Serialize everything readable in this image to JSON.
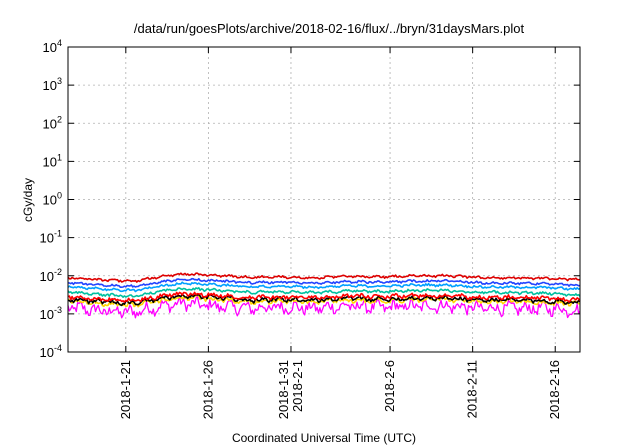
{
  "chart_data": {
    "type": "line",
    "title": "/data/run/goesPlots/archive/2018-02-16/flux/../bryn/31daysMars.plot",
    "xlabel": "Coordinated Universal Time (UTC)",
    "ylabel": "cGy/day",
    "y_scale": "log",
    "ylim": [
      0.0001,
      10000
    ],
    "xlim": [
      "2018-01-17T12:00",
      "2018-02-17T12:00"
    ],
    "grid": true,
    "legend": "none",
    "y_ticks": [
      {
        "value": 0.0001,
        "base": "10",
        "exp": "-4"
      },
      {
        "value": 0.001,
        "base": "10",
        "exp": "-3"
      },
      {
        "value": 0.01,
        "base": "10",
        "exp": "-2"
      },
      {
        "value": 0.1,
        "base": "10",
        "exp": "-1"
      },
      {
        "value": 1,
        "base": "10",
        "exp": "0"
      },
      {
        "value": 10,
        "base": "10",
        "exp": "1"
      },
      {
        "value": 100,
        "base": "10",
        "exp": "2"
      },
      {
        "value": 1000,
        "base": "10",
        "exp": "3"
      },
      {
        "value": 10000,
        "base": "10",
        "exp": "4"
      }
    ],
    "x_ticks": [
      {
        "date": "2018-01-21",
        "lines": [
          "2018-1-21"
        ]
      },
      {
        "date": "2018-01-26",
        "lines": [
          "2018-1-26"
        ]
      },
      {
        "date": "2018-01-31",
        "lines": [
          "2018-1-31",
          "2018-2-1"
        ]
      },
      {
        "date": "2018-02-06",
        "lines": [
          "2018-2-6"
        ]
      },
      {
        "date": "2018-02-11",
        "lines": [
          "2018-2-11"
        ]
      },
      {
        "date": "2018-02-16",
        "lines": [
          "2018-2-16"
        ]
      }
    ],
    "series": [
      {
        "color": "#ff00ff",
        "noise": 0.55,
        "x": [
          "2018-01-17T12:00",
          "2018-01-19T12:00",
          "2018-01-21T12:00",
          "2018-01-23T12:00",
          "2018-01-24T12:00",
          "2018-01-26T12:00",
          "2018-01-28T12:00",
          "2018-01-30T12:00",
          "2018-02-01T12:00",
          "2018-02-03T12:00",
          "2018-02-05T12:00",
          "2018-02-07T12:00",
          "2018-02-09T12:00",
          "2018-02-11T12:00",
          "2018-02-13T12:00",
          "2018-02-15T12:00",
          "2018-02-17T12:00"
        ],
        "values": [
          0.0015,
          0.0012,
          0.0011,
          0.0017,
          0.0019,
          0.0016,
          0.0014,
          0.0015,
          0.0014,
          0.0016,
          0.0015,
          0.0016,
          0.0016,
          0.0014,
          0.0014,
          0.0014,
          0.0012
        ]
      },
      {
        "color": "#ffd700",
        "noise": 0.2,
        "x": [
          "2018-01-17T12:00",
          "2018-01-19T12:00",
          "2018-01-21T12:00",
          "2018-01-23T12:00",
          "2018-01-24T12:00",
          "2018-01-26T12:00",
          "2018-01-28T12:00",
          "2018-01-30T12:00",
          "2018-02-01T12:00",
          "2018-02-03T12:00",
          "2018-02-05T12:00",
          "2018-02-07T12:00",
          "2018-02-09T12:00",
          "2018-02-11T12:00",
          "2018-02-13T12:00",
          "2018-02-15T12:00",
          "2018-02-17T12:00"
        ],
        "values": [
          0.0022,
          0.0019,
          0.0017,
          0.0024,
          0.0027,
          0.0024,
          0.0021,
          0.0022,
          0.0021,
          0.0023,
          0.0022,
          0.0024,
          0.0024,
          0.0021,
          0.0021,
          0.002,
          0.0018
        ]
      },
      {
        "color": "#000000",
        "noise": 0.2,
        "x": [
          "2018-01-17T12:00",
          "2018-01-19T12:00",
          "2018-01-21T12:00",
          "2018-01-23T12:00",
          "2018-01-24T12:00",
          "2018-01-26T12:00",
          "2018-01-28T12:00",
          "2018-01-30T12:00",
          "2018-02-01T12:00",
          "2018-02-03T12:00",
          "2018-02-05T12:00",
          "2018-02-07T12:00",
          "2018-02-09T12:00",
          "2018-02-11T12:00",
          "2018-02-13T12:00",
          "2018-02-15T12:00",
          "2018-02-17T12:00"
        ],
        "values": [
          0.0024,
          0.0021,
          0.0019,
          0.0027,
          0.003,
          0.0027,
          0.0023,
          0.0024,
          0.0023,
          0.0026,
          0.0024,
          0.0026,
          0.0026,
          0.0023,
          0.0023,
          0.0022,
          0.002
        ]
      },
      {
        "color": "#ff0000",
        "noise": 0.18,
        "x": [
          "2018-01-17T12:00",
          "2018-01-19T12:00",
          "2018-01-21T12:00",
          "2018-01-23T12:00",
          "2018-01-24T12:00",
          "2018-01-26T12:00",
          "2018-01-28T12:00",
          "2018-01-30T12:00",
          "2018-02-01T12:00",
          "2018-02-03T12:00",
          "2018-02-05T12:00",
          "2018-02-07T12:00",
          "2018-02-09T12:00",
          "2018-02-11T12:00",
          "2018-02-13T12:00",
          "2018-02-15T12:00",
          "2018-02-17T12:00"
        ],
        "values": [
          0.0028,
          0.0024,
          0.0022,
          0.0031,
          0.0034,
          0.0031,
          0.0027,
          0.0028,
          0.0027,
          0.003,
          0.0028,
          0.003,
          0.003,
          0.0027,
          0.0027,
          0.0026,
          0.0023
        ]
      },
      {
        "color": "#00c0a0",
        "noise": 0.12,
        "x": [
          "2018-01-17T12:00",
          "2018-01-19T12:00",
          "2018-01-21T12:00",
          "2018-01-23T12:00",
          "2018-01-24T12:00",
          "2018-01-26T12:00",
          "2018-01-28T12:00",
          "2018-01-30T12:00",
          "2018-02-01T12:00",
          "2018-02-03T12:00",
          "2018-02-05T12:00",
          "2018-02-07T12:00",
          "2018-02-09T12:00",
          "2018-02-11T12:00",
          "2018-02-13T12:00",
          "2018-02-15T12:00",
          "2018-02-17T12:00"
        ],
        "values": [
          0.0038,
          0.0032,
          0.0029,
          0.0042,
          0.0046,
          0.0042,
          0.0037,
          0.0038,
          0.0036,
          0.004,
          0.0038,
          0.0041,
          0.0041,
          0.0037,
          0.0036,
          0.0035,
          0.0031
        ]
      },
      {
        "color": "#00a0ff",
        "noise": 0.1,
        "x": [
          "2018-01-17T12:00",
          "2018-01-19T12:00",
          "2018-01-21T12:00",
          "2018-01-23T12:00",
          "2018-01-24T12:00",
          "2018-01-26T12:00",
          "2018-01-28T12:00",
          "2018-01-30T12:00",
          "2018-02-01T12:00",
          "2018-02-03T12:00",
          "2018-02-05T12:00",
          "2018-02-07T12:00",
          "2018-02-09T12:00",
          "2018-02-11T12:00",
          "2018-02-13T12:00",
          "2018-02-15T12:00",
          "2018-02-17T12:00"
        ],
        "values": [
          0.0052,
          0.0045,
          0.0041,
          0.0057,
          0.0064,
          0.0058,
          0.0052,
          0.0053,
          0.005,
          0.0055,
          0.0053,
          0.0057,
          0.0057,
          0.0051,
          0.005,
          0.0049,
          0.0044
        ]
      },
      {
        "color": "#2244ff",
        "noise": 0.1,
        "x": [
          "2018-01-17T12:00",
          "2018-01-19T12:00",
          "2018-01-21T12:00",
          "2018-01-23T12:00",
          "2018-01-24T12:00",
          "2018-01-26T12:00",
          "2018-01-28T12:00",
          "2018-01-30T12:00",
          "2018-02-01T12:00",
          "2018-02-03T12:00",
          "2018-02-05T12:00",
          "2018-02-07T12:00",
          "2018-02-09T12:00",
          "2018-02-11T12:00",
          "2018-02-13T12:00",
          "2018-02-15T12:00",
          "2018-02-17T12:00"
        ],
        "values": [
          0.0066,
          0.0057,
          0.0052,
          0.0073,
          0.0081,
          0.0074,
          0.0066,
          0.0068,
          0.0064,
          0.007,
          0.0068,
          0.0072,
          0.0073,
          0.0065,
          0.0064,
          0.0062,
          0.0056
        ]
      },
      {
        "color": "#dd0000",
        "noise": 0.1,
        "x": [
          "2018-01-17T12:00",
          "2018-01-19T12:00",
          "2018-01-21T12:00",
          "2018-01-23T12:00",
          "2018-01-24T12:00",
          "2018-01-26T12:00",
          "2018-01-28T12:00",
          "2018-01-30T12:00",
          "2018-02-01T12:00",
          "2018-02-03T12:00",
          "2018-02-05T12:00",
          "2018-02-07T12:00",
          "2018-02-09T12:00",
          "2018-02-11T12:00",
          "2018-02-13T12:00",
          "2018-02-15T12:00",
          "2018-02-17T12:00"
        ],
        "values": [
          0.009,
          0.0078,
          0.0072,
          0.01,
          0.0112,
          0.0102,
          0.0091,
          0.0094,
          0.0088,
          0.0097,
          0.0093,
          0.0099,
          0.01,
          0.009,
          0.0088,
          0.0086,
          0.0078
        ]
      }
    ]
  }
}
